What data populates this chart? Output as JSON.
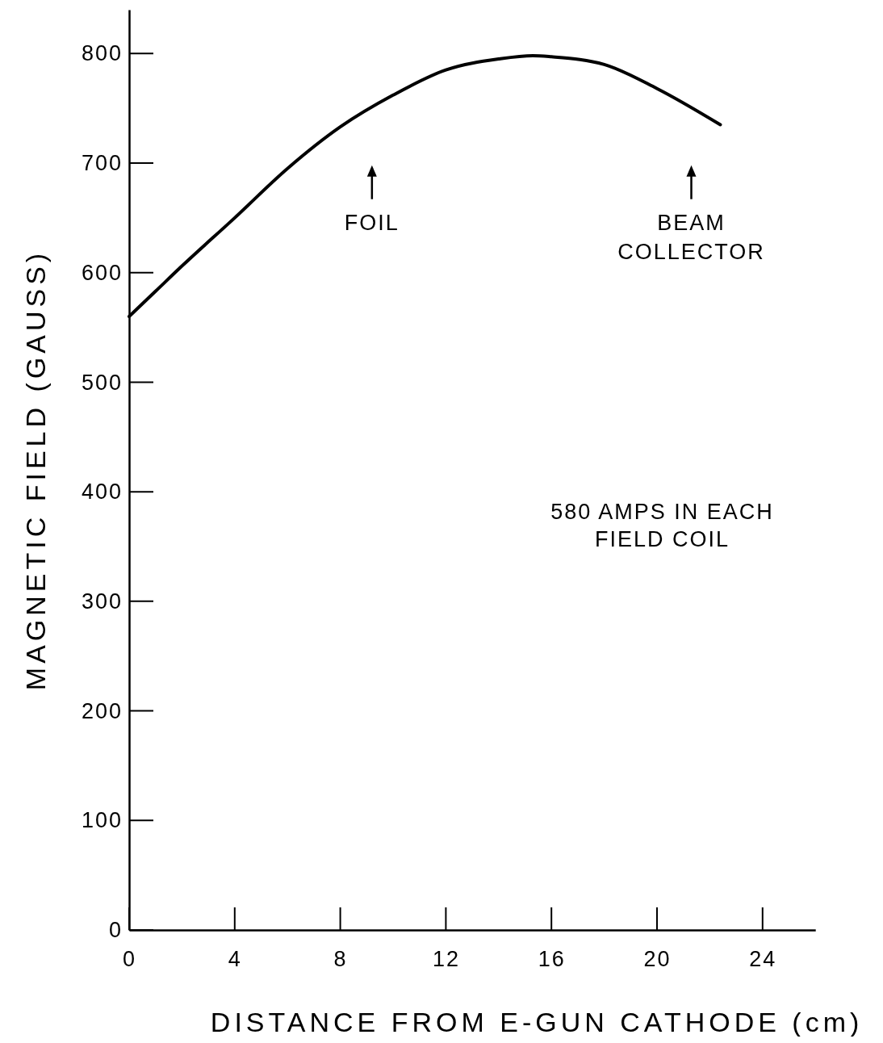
{
  "chart_data": {
    "type": "line",
    "xlabel": "DISTANCE FROM E-GUN CATHODE (cm)",
    "ylabel": "MAGNETIC FIELD (GAUSS)",
    "x": [
      0,
      1,
      2,
      4,
      6,
      8,
      10,
      12,
      14,
      15.3,
      16,
      18,
      20,
      22.4
    ],
    "series": [
      {
        "color": "#000000",
        "values": [
          560,
          583,
          606,
          650,
          695,
          733,
          762,
          785,
          795,
          798,
          797,
          790,
          768,
          735
        ]
      }
    ],
    "xlim": [
      0,
      26
    ],
    "ylim": [
      0,
      840
    ],
    "xticks": [
      0,
      4,
      8,
      12,
      16,
      20,
      24
    ],
    "yticks": [
      0,
      100,
      200,
      300,
      400,
      500,
      600,
      700,
      800
    ],
    "grid": false,
    "marker": "none",
    "line_style": "solid",
    "annotations": [
      "FOIL",
      "BEAM\nCOLLECTOR",
      "580 AMPS IN EACH\nFIELD COIL"
    ]
  }
}
